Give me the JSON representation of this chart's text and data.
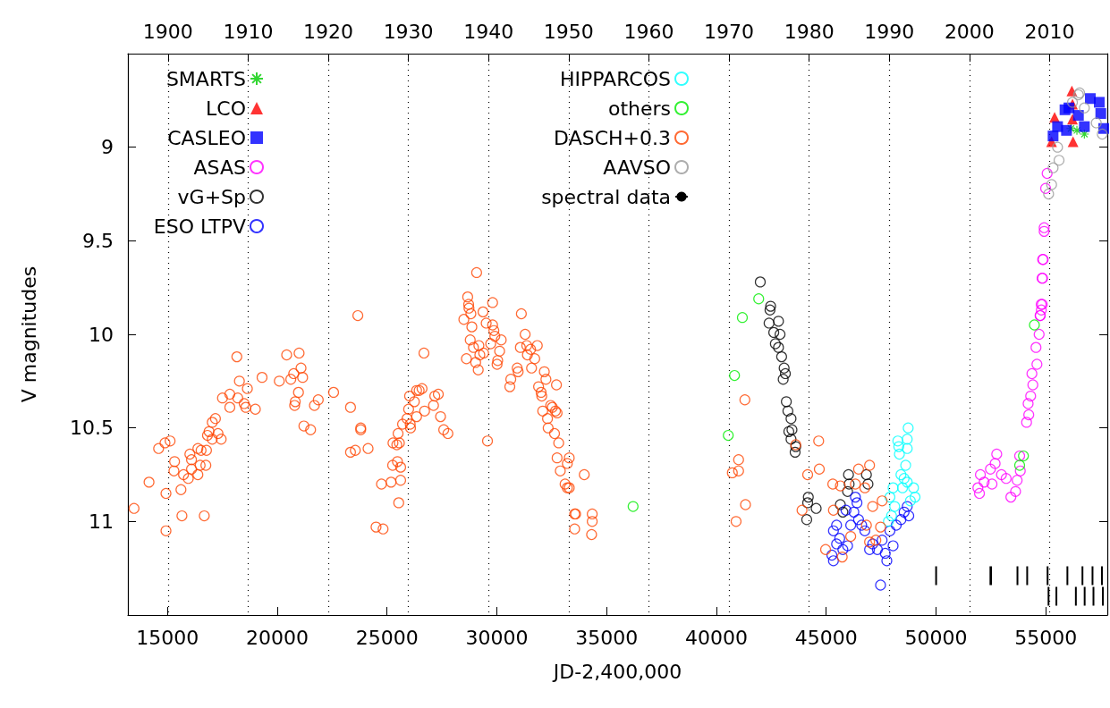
{
  "chart_data": {
    "type": "scatter",
    "xlabel": "JD-2,400,000",
    "ylabel": "V magnitudes",
    "xlim": [
      13200,
      57800
    ],
    "xticks": [
      15000,
      20000,
      25000,
      30000,
      35000,
      40000,
      45000,
      50000,
      55000
    ],
    "x2lim": [
      1895.0,
      2017.2
    ],
    "x2ticks": [
      1900,
      1910,
      1920,
      1930,
      1940,
      1950,
      1960,
      1970,
      1980,
      1990,
      2000,
      2010
    ],
    "ylim": [
      11.5,
      8.5
    ],
    "yticks": [
      9,
      9.5,
      10,
      10.5,
      11
    ],
    "grid": "x",
    "legend": "top left",
    "series": [
      {
        "name": "SMARTS",
        "color": "#00cc00",
        "marker": "cross",
        "x": [
          56145,
          56416,
          56755
        ],
        "values": [
          8.9,
          8.91,
          8.93
        ]
      },
      {
        "name": "LCO",
        "color": "#ff0000",
        "marker": "triangle",
        "x": [
          56185,
          56213,
          55399,
          55263,
          56240,
          56213
        ],
        "values": [
          8.7,
          8.77,
          8.84,
          8.97,
          8.97,
          8.85
        ]
      },
      {
        "name": "CASLEO",
        "color": "#0000ff",
        "marker": "square",
        "x": [
          55330,
          55534,
          55873,
          55941,
          56052,
          56484,
          56755,
          57027,
          57434,
          57502,
          57637
        ],
        "values": [
          8.94,
          8.89,
          8.8,
          8.91,
          8.79,
          8.83,
          8.89,
          8.74,
          8.76,
          8.82,
          8.9
        ]
      },
      {
        "name": "ASAS",
        "color": "#ff00ff",
        "marker": "circle",
        "x": [
          51906,
          51978,
          52020,
          52192,
          52478,
          52550,
          52692,
          52764,
          52979,
          53193,
          53408,
          53622,
          53694,
          53837,
          53808,
          54123,
          54223,
          54194,
          54309,
          54409,
          54366,
          54595,
          54552,
          54695,
          54738,
          54795,
          54838,
          54852,
          54880,
          54747,
          54787,
          54828,
          54855,
          54923,
          54923,
          54991,
          55059
        ],
        "values": [
          10.82,
          10.85,
          10.75,
          10.79,
          10.72,
          10.8,
          10.69,
          10.64,
          10.75,
          10.77,
          10.87,
          10.84,
          10.78,
          10.73,
          10.65,
          10.47,
          10.43,
          10.37,
          10.33,
          10.27,
          10.21,
          10.16,
          10.07,
          10.0,
          9.9,
          9.87,
          9.84,
          9.7,
          9.6,
          9.9,
          9.84,
          9.7,
          9.6,
          9.45,
          9.43,
          9.22,
          9.14
        ]
      },
      {
        "name": "vG+Sp",
        "color": "#000000",
        "marker": "circle",
        "x": [
          41996,
          42468,
          42439,
          42397,
          42826,
          42611,
          42897,
          42683,
          42826,
          42969,
          43083,
          43140,
          43040,
          43183,
          43254,
          43397,
          43297,
          43440,
          43397,
          43612,
          43583,
          44184,
          44155,
          44542,
          44112,
          46014,
          46043,
          45972,
          46830,
          46901,
          45643,
          45757
        ],
        "values": [
          9.72,
          9.85,
          9.87,
          9.94,
          9.93,
          9.99,
          10.0,
          10.05,
          10.07,
          10.12,
          10.18,
          10.21,
          10.24,
          10.36,
          10.41,
          10.45,
          10.52,
          10.51,
          10.56,
          10.6,
          10.63,
          10.87,
          10.9,
          10.93,
          10.99,
          10.75,
          10.8,
          10.84,
          10.75,
          10.8,
          10.91,
          10.95
        ]
      },
      {
        "name": "ESO LTPV",
        "color": "#0000ff",
        "marker": "circle",
        "x": [
          45328,
          45257,
          45328,
          45471,
          45614,
          45757,
          45972,
          46115,
          46258,
          46400,
          46472,
          46615,
          46758,
          46973,
          47116,
          47330,
          47473,
          47545,
          47688,
          47759,
          47902,
          48045,
          48188,
          48403,
          48546,
          48689,
          48760,
          46329,
          45900,
          45471
        ],
        "values": [
          11.21,
          11.18,
          11.05,
          11.12,
          11.09,
          11.15,
          11.13,
          11.02,
          10.95,
          10.9,
          10.99,
          11.02,
          11.05,
          11.15,
          11.12,
          11.15,
          11.34,
          11.1,
          11.17,
          11.21,
          11.05,
          11.13,
          11.02,
          10.99,
          10.95,
          10.92,
          10.97,
          10.87,
          10.94,
          11.02
        ]
      },
      {
        "name": "HIPPARCOS",
        "color": "#00ffff",
        "marker": "circle",
        "x": [
          48732,
          48260,
          48689,
          48303,
          48689,
          48332,
          48618,
          48403,
          48689,
          48475,
          48975,
          49046,
          48045,
          47902,
          48117,
          47974,
          47831,
          48832,
          48546
        ],
        "values": [
          10.5,
          10.57,
          10.56,
          10.6,
          10.61,
          10.64,
          10.7,
          10.75,
          10.79,
          10.82,
          10.82,
          10.87,
          10.82,
          10.87,
          10.92,
          10.97,
          11.0,
          10.89,
          10.77
        ]
      },
      {
        "name": "others",
        "color": "#00ee00",
        "marker": "circle",
        "x": [
          36205,
          40538,
          40824,
          41181,
          41925,
          54480,
          53980,
          53808
        ],
        "values": [
          10.92,
          10.54,
          10.22,
          9.91,
          9.81,
          9.95,
          10.65,
          10.7
        ]
      },
      {
        "name": "DASCH+0.3",
        "color": "#ff4500",
        "marker": "circle",
        "x": [
          13479,
          14162,
          14598,
          14889,
          15122,
          14933,
          14933,
          15325,
          15296,
          15616,
          15660,
          15732,
          15951,
          16023,
          16096,
          16096,
          16387,
          16387,
          16489,
          16532,
          16750,
          16779,
          16678,
          16823,
          16896,
          17041,
          17186,
          17041,
          17303,
          17448,
          17506,
          17841,
          17841,
          18161,
          18277,
          18204,
          18495,
          18640,
          18568,
          19004,
          19309,
          20094,
          20429,
          20618,
          20749,
          20996,
          21083,
          21156,
          20967,
          20792,
          20821,
          21214,
          21519,
          21694,
          21868,
          22566,
          23337,
          23671,
          23802,
          23802,
          23337,
          23555,
          24137,
          24500,
          24820,
          24747,
          25184,
          25620,
          25532,
          25256,
          25474,
          25620,
          25271,
          25445,
          25562,
          25503,
          25707,
          25911,
          26056,
          26070,
          25983,
          26027,
          26245,
          26347,
          26463,
          26594,
          26681,
          26347,
          26710,
          27117,
          27175,
          27335,
          27437,
          27582,
          27771,
          28498,
          28615,
          28673,
          28717,
          28731,
          28789,
          28862,
          28818,
          28935,
          29080,
          29036,
          29153,
          29182,
          29226,
          29371,
          29400,
          29516,
          29575,
          29720,
          29807,
          29807,
          29865,
          29909,
          30011,
          30040,
          30127,
          30200,
          30592,
          30636,
          30927,
          30971,
          31072,
          31116,
          31290,
          31363,
          31392,
          31537,
          31581,
          31726,
          31843,
          31901,
          32017,
          32046,
          32090,
          32163,
          32235,
          32308,
          32337,
          32453,
          32526,
          32628,
          32671,
          32715,
          32744,
          32817,
          32744,
          32890,
          33108,
          33210,
          33297,
          33210,
          33297,
          33544,
          33588,
          33544,
          33981,
          34344,
          34344,
          34315,
          41295,
          41009,
          40724,
          41009,
          41324,
          40895,
          43612,
          44656,
          44155,
          44685,
          43898,
          45299,
          45643,
          45328,
          44971,
          45728,
          46115,
          46472,
          46973,
          46758,
          47116,
          47545,
          47473,
          46973,
          47259,
          46830,
          46329
        ],
        "values": [
          10.93,
          10.79,
          10.61,
          10.58,
          10.57,
          10.85,
          11.05,
          10.68,
          10.73,
          10.83,
          10.97,
          10.75,
          10.77,
          10.64,
          10.67,
          10.72,
          10.75,
          10.61,
          10.7,
          10.62,
          10.7,
          10.62,
          10.97,
          10.54,
          10.52,
          10.56,
          10.45,
          10.47,
          10.53,
          10.56,
          10.34,
          10.32,
          10.39,
          10.12,
          10.25,
          10.34,
          10.37,
          10.29,
          10.39,
          10.4,
          10.23,
          10.25,
          10.11,
          10.24,
          10.21,
          10.1,
          10.18,
          10.23,
          10.31,
          10.38,
          10.36,
          10.49,
          10.51,
          10.38,
          10.35,
          10.31,
          10.39,
          9.9,
          10.5,
          10.51,
          10.63,
          10.62,
          10.61,
          11.03,
          11.04,
          10.8,
          10.79,
          10.78,
          10.9,
          10.7,
          10.68,
          10.71,
          10.58,
          10.59,
          10.58,
          10.53,
          10.48,
          10.45,
          10.48,
          10.5,
          10.4,
          10.33,
          10.36,
          10.3,
          10.3,
          10.29,
          10.1,
          10.44,
          10.41,
          10.38,
          10.33,
          10.32,
          10.44,
          10.51,
          10.53,
          9.92,
          10.13,
          9.8,
          9.84,
          9.86,
          10.03,
          9.96,
          9.89,
          10.07,
          9.67,
          10.15,
          10.19,
          10.06,
          10.11,
          9.88,
          10.1,
          9.94,
          10.57,
          10.05,
          9.83,
          9.95,
          9.98,
          10.01,
          10.16,
          10.14,
          10.09,
          10.03,
          10.28,
          10.24,
          10.18,
          10.2,
          10.07,
          9.89,
          10.0,
          10.06,
          10.11,
          10.08,
          10.18,
          10.13,
          10.06,
          10.28,
          10.31,
          10.33,
          10.41,
          10.2,
          10.24,
          10.45,
          10.5,
          10.38,
          10.39,
          10.53,
          10.41,
          10.27,
          10.42,
          10.58,
          10.66,
          10.73,
          10.8,
          10.82,
          10.66,
          10.69,
          10.82,
          10.96,
          10.96,
          11.04,
          10.75,
          10.96,
          11.0,
          11.07,
          10.35,
          10.67,
          10.74,
          10.73,
          10.91,
          11.0,
          10.59,
          10.57,
          10.75,
          10.72,
          10.94,
          10.8,
          10.81,
          10.94,
          11.15,
          11.19,
          11.08,
          10.72,
          10.7,
          10.82,
          10.92,
          10.89,
          11.03,
          11.11,
          11.1,
          11.02,
          10.8
        ]
      },
      {
        "name": "AAVSO",
        "color": "#999999",
        "marker": "circle",
        "x": [
          56484,
          56213,
          55534,
          55602,
          55331,
          55263,
          55127,
          57569,
          57298,
          56755,
          56540
        ],
        "values": [
          8.72,
          8.76,
          9.0,
          9.07,
          9.11,
          9.2,
          9.25,
          8.93,
          8.87,
          8.79,
          8.71
        ]
      },
      {
        "name": "spectral data",
        "type": "line",
        "color": "#000000",
        "marker": "none",
        "x": [
          50004,
          50004,
          null,
          52478,
          52478,
          null,
          52507,
          52507,
          null,
          53708,
          53708,
          null,
          54151,
          54151,
          null,
          55080,
          55080,
          null,
          55982,
          55982,
          null,
          56668,
          56668,
          null,
          57126,
          57126,
          null,
          57555,
          57555,
          null,
          55124,
          55124,
          null,
          55481,
          55481,
          null,
          56368,
          56368,
          null,
          56768,
          56768,
          null,
          57169,
          57169,
          null,
          57598,
          57598,
          null
        ],
        "values": [
          11.24,
          11.34,
          null,
          11.24,
          11.34,
          null,
          11.24,
          11.34,
          null,
          11.24,
          11.34,
          null,
          11.24,
          11.34,
          null,
          11.24,
          11.34,
          null,
          11.24,
          11.34,
          null,
          11.24,
          11.34,
          null,
          11.24,
          11.34,
          null,
          11.24,
          11.34,
          null,
          11.35,
          11.45,
          null,
          11.35,
          11.45,
          null,
          11.35,
          11.45,
          null,
          11.35,
          11.45,
          null,
          11.35,
          11.45,
          null,
          11.35,
          11.45,
          null
        ]
      }
    ]
  }
}
